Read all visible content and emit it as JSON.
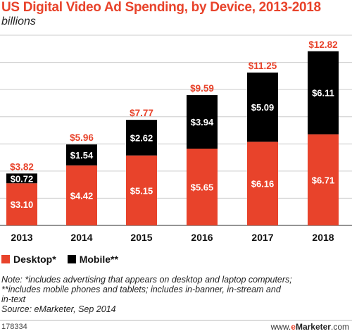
{
  "chart_data": {
    "type": "bar",
    "stacked": true,
    "title": "US Digital Video Ad Spending, by Device, 2013-2018",
    "subtitle": "billions",
    "categories": [
      "2013",
      "2014",
      "2015",
      "2016",
      "2017",
      "2018"
    ],
    "series": [
      {
        "name": "Desktop*",
        "values": [
          3.1,
          4.42,
          5.15,
          5.65,
          6.16,
          6.71
        ],
        "labels": [
          "$3.10",
          "$4.42",
          "$5.15",
          "$5.65",
          "$6.16",
          "$6.71"
        ],
        "color": "#e8432b"
      },
      {
        "name": "Mobile**",
        "values": [
          0.72,
          1.54,
          2.62,
          3.94,
          5.09,
          6.11
        ],
        "labels": [
          "$0.72",
          "$1.54",
          "$2.62",
          "$3.94",
          "$5.09",
          "$6.11"
        ],
        "color": "#000000"
      }
    ],
    "totals": [
      3.82,
      5.96,
      7.77,
      9.59,
      11.25,
      12.82
    ],
    "total_labels": [
      "$3.82",
      "$5.96",
      "$7.77",
      "$9.59",
      "$11.25",
      "$12.82"
    ],
    "ylim": [
      0,
      14
    ],
    "grid": true,
    "legend_position": "bottom-left"
  },
  "legend": {
    "desktop_label": "Desktop*",
    "mobile_label": "Mobile**"
  },
  "notes": {
    "line1": "Note: *includes advertising that appears on desktop and laptop computers;",
    "line2": "**includes mobile phones and tablets; includes in-banner, in-stream and",
    "line3": "in-text",
    "source": "Source: eMarketer, Sep 2014"
  },
  "footer": {
    "chart_id": "178334",
    "brand_prefix": "www.",
    "brand_accent": "e",
    "brand_name": "Marketer",
    "brand_suffix": ".com"
  },
  "colors": {
    "desktop": "#e8432b",
    "mobile": "#000000",
    "title": "#e8432b",
    "total_label": "#e8432b",
    "grid": "#cccccc"
  }
}
